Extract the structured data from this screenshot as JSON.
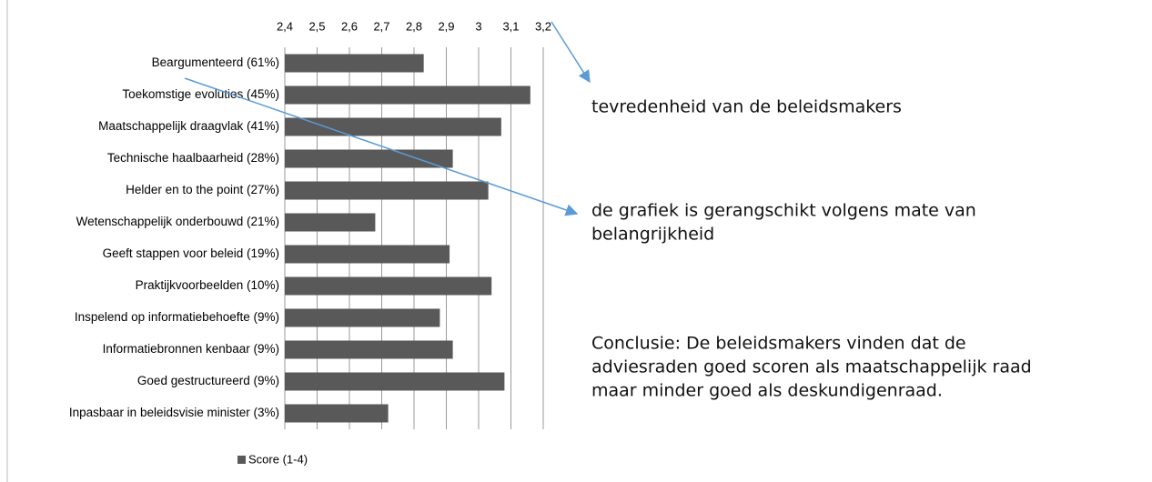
{
  "chart_data": {
    "type": "bar",
    "orientation": "horizontal",
    "categories": [
      "Beargumenteerd (61%)",
      "Toekomstige evoluties  (45%)",
      "Maatschappelijk draagvlak (41%)",
      "Technische haalbaarheid (28%)",
      "Helder en to the point (27%)",
      "Wetenschappelijk onderbouwd (21%)",
      "Geeft stappen voor beleid (19%)",
      "Praktijkvoorbeelden (10%)",
      "Inspelend op informatiebehoefte (9%)",
      "Informatiebronnen kenbaar (9%)",
      "Goed gestructureerd (9%)",
      "Inpasbaar in beleidsvisie minister (3%)"
    ],
    "series": [
      {
        "name": "Score (1-4)",
        "color": "#595959",
        "values": [
          2.83,
          3.16,
          3.07,
          2.92,
          3.03,
          2.68,
          2.91,
          3.04,
          2.88,
          2.92,
          3.08,
          2.72
        ]
      }
    ],
    "xlim": [
      2.4,
      3.2
    ],
    "xticks": [
      {
        "value": 2.4,
        "label": "2,4"
      },
      {
        "value": 2.5,
        "label": "2,5"
      },
      {
        "value": 2.6,
        "label": "2,6"
      },
      {
        "value": 2.7,
        "label": "2,7"
      },
      {
        "value": 2.8,
        "label": "2,8"
      },
      {
        "value": 2.9,
        "label": "2,9"
      },
      3,
      {
        "value": 3.1,
        "label": "3,1"
      },
      {
        "value": 3.2,
        "label": "3,2"
      }
    ],
    "grid": true,
    "legend": "bottom",
    "annotations": [
      {
        "lines": [
          "tevredenheid van de beleidsmakers"
        ]
      },
      {
        "lines": [
          "de grafiek is gerangschikt volgens mate van",
          "belangrijkheid"
        ]
      },
      {
        "lines": [
          "Conclusie: De beleidsmakers vinden dat de",
          "adviesraden goed scoren als maatschappelijk raad",
          "maar minder goed als deskundigenraad."
        ]
      }
    ]
  }
}
